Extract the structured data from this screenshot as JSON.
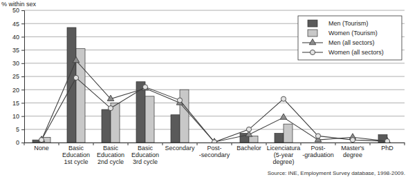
{
  "chart_data": {
    "type": "bar",
    "y_label": "% within sex",
    "annotations": [
      "Source: INE, Employment Survey database, 1998-2009."
    ],
    "categories": [
      "None",
      "Basic\nEducation\n1st cycle",
      "Basic\nEducation\n2nd cycle",
      "Basic\nEducation\n3rd cycle",
      "Secondary",
      "Post-\n-secondary",
      "Bachelor",
      "Licenciatura\n(5-year\ndegree)",
      "Post-\n-graduation",
      "Master's\ndegree",
      "PhD"
    ],
    "series": [
      {
        "name": "Men (Tourism)",
        "type": "bar",
        "color": "#5a5a5a",
        "values": [
          1,
          43.5,
          12.5,
          23,
          10.5,
          0,
          3.5,
          3.5,
          0,
          0,
          3
        ]
      },
      {
        "name": "Women (Tourism)",
        "type": "bar",
        "color": "#c8c8c8",
        "values": [
          2,
          35.5,
          15,
          17.5,
          20,
          0,
          2.5,
          7,
          0,
          0,
          0
        ]
      },
      {
        "name": "Men (all sectors)",
        "type": "line",
        "marker": "triangle",
        "color": "#8c8c8c",
        "values": [
          1,
          31,
          16.5,
          20.5,
          15,
          0.2,
          3,
          9.5,
          1,
          2,
          0.5
        ]
      },
      {
        "name": "Women (all sectors)",
        "type": "line",
        "marker": "circle",
        "color": "#e3e3e3",
        "values": [
          1,
          24.5,
          13,
          21,
          16,
          0.2,
          5,
          16.5,
          2.5,
          1,
          0.5
        ]
      }
    ],
    "ylim": [
      0,
      50
    ],
    "yticks": [
      0,
      5,
      10,
      15,
      20,
      25,
      30,
      35,
      40,
      45,
      50
    ],
    "grid": true,
    "legend": "upper right"
  }
}
